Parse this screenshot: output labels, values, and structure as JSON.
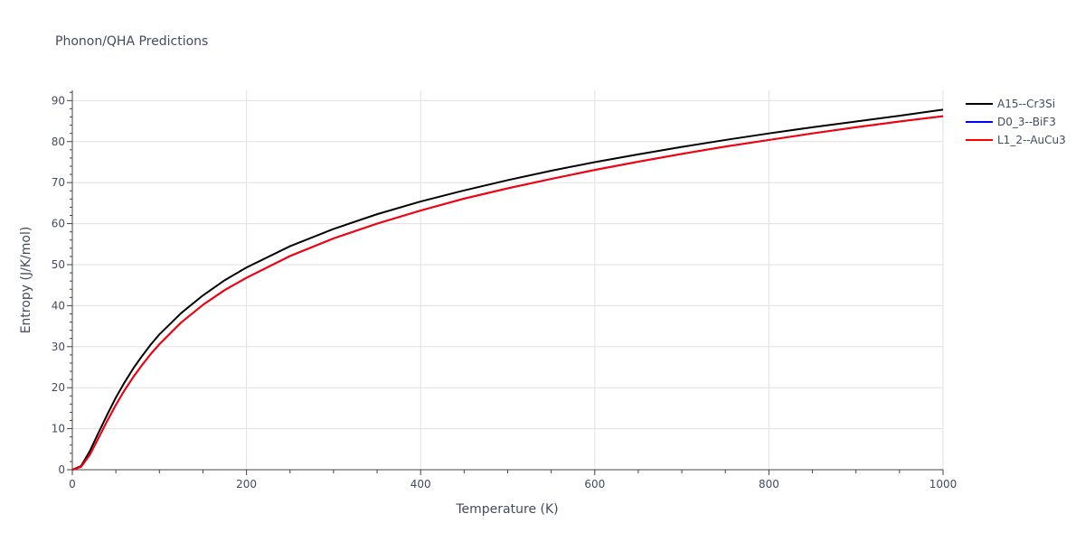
{
  "chart_data": {
    "type": "line",
    "title": "Phonon/QHA Predictions",
    "xlabel": "Temperature (K)",
    "ylabel": "Entropy (J/K/mol)",
    "xlim": [
      0,
      1000
    ],
    "ylim": [
      0,
      92.5
    ],
    "x_ticks": [
      "0",
      "200",
      "400",
      "600",
      "800",
      "1000"
    ],
    "y_ticks": [
      "0",
      "10",
      "20",
      "30",
      "40",
      "50",
      "60",
      "70",
      "80",
      "90"
    ],
    "grid": true,
    "legend_position": "top-right",
    "x": [
      0,
      10,
      20,
      30,
      40,
      50,
      60,
      70,
      80,
      90,
      100,
      125,
      150,
      175,
      200,
      250,
      300,
      350,
      400,
      450,
      500,
      550,
      600,
      650,
      700,
      750,
      800,
      850,
      900,
      950,
      1000
    ],
    "series": [
      {
        "name": "A15--Cr3Si",
        "color": "#000000",
        "values": [
          0,
          0.9,
          4.5,
          9.0,
          13.4,
          17.6,
          21.3,
          24.7,
          27.7,
          30.5,
          33.0,
          38.2,
          42.5,
          46.2,
          49.3,
          54.5,
          58.7,
          62.3,
          65.4,
          68.1,
          70.6,
          72.9,
          75.0,
          76.9,
          78.7,
          80.4,
          82.0,
          83.5,
          84.9,
          86.3,
          87.8
        ]
      },
      {
        "name": "D0_3--BiF3",
        "color": "#0000ff",
        "values": [
          0,
          0.7,
          3.6,
          7.7,
          11.9,
          15.8,
          19.4,
          22.6,
          25.5,
          28.2,
          30.6,
          35.9,
          40.2,
          43.8,
          46.8,
          52.1,
          56.4,
          60.0,
          63.2,
          66.1,
          68.6,
          70.9,
          73.1,
          75.1,
          77.0,
          78.8,
          80.4,
          82.0,
          83.5,
          84.9,
          86.2
        ]
      },
      {
        "name": "L1_2--AuCu3",
        "color": "#ff0000",
        "values": [
          0,
          0.7,
          3.6,
          7.7,
          11.9,
          15.8,
          19.4,
          22.6,
          25.5,
          28.2,
          30.6,
          35.9,
          40.2,
          43.8,
          46.8,
          52.1,
          56.4,
          60.0,
          63.2,
          66.1,
          68.6,
          70.9,
          73.1,
          75.1,
          77.0,
          78.8,
          80.4,
          82.0,
          83.5,
          84.9,
          86.2
        ]
      }
    ]
  }
}
